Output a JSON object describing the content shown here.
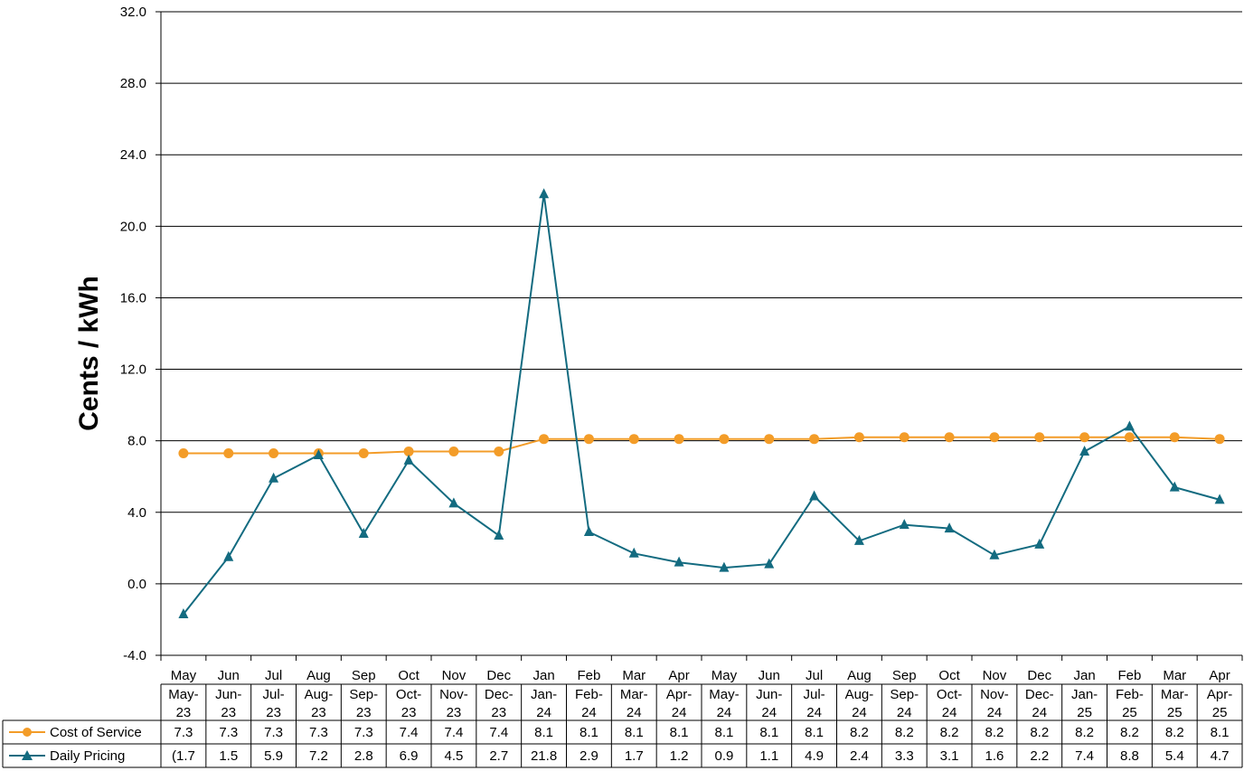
{
  "chart_data": {
    "type": "line",
    "ylabel": "Cents / kWh",
    "ylim": [
      -4.0,
      32.0
    ],
    "yticks": [
      "32.0",
      "28.0",
      "24.0",
      "20.0",
      "16.0",
      "12.0",
      "8.0",
      "4.0",
      "0.0",
      "-4.0"
    ],
    "grid": true,
    "legend": "data-table",
    "categories": [
      "May",
      "Jun",
      "Jul",
      "Aug",
      "Sep",
      "Oct",
      "Nov",
      "Dec",
      "Jan",
      "Feb",
      "Mar",
      "Apr",
      "May",
      "Jun",
      "Jul",
      "Aug",
      "Sep",
      "Oct",
      "Nov",
      "Dec",
      "Jan",
      "Feb",
      "Mar",
      "Apr"
    ],
    "period_labels": [
      [
        "May-",
        "23"
      ],
      [
        "Jun-",
        "23"
      ],
      [
        "Jul-",
        "23"
      ],
      [
        "Aug-",
        "23"
      ],
      [
        "Sep-",
        "23"
      ],
      [
        "Oct-",
        "23"
      ],
      [
        "Nov-",
        "23"
      ],
      [
        "Dec-",
        "23"
      ],
      [
        "Jan-",
        "24"
      ],
      [
        "Feb-",
        "24"
      ],
      [
        "Mar-",
        "24"
      ],
      [
        "Apr-",
        "24"
      ],
      [
        "May-",
        "24"
      ],
      [
        "Jun-",
        "24"
      ],
      [
        "Jul-",
        "24"
      ],
      [
        "Aug-",
        "24"
      ],
      [
        "Sep-",
        "24"
      ],
      [
        "Oct-",
        "24"
      ],
      [
        "Nov-",
        "24"
      ],
      [
        "Dec-",
        "24"
      ],
      [
        "Jan-",
        "25"
      ],
      [
        "Feb-",
        "25"
      ],
      [
        "Mar-",
        "25"
      ],
      [
        "Apr-",
        "25"
      ]
    ],
    "series": [
      {
        "name": "Cost of Service",
        "color": "#F39C28",
        "marker": "circle",
        "values": [
          7.3,
          7.3,
          7.3,
          7.3,
          7.3,
          7.4,
          7.4,
          7.4,
          8.1,
          8.1,
          8.1,
          8.1,
          8.1,
          8.1,
          8.1,
          8.2,
          8.2,
          8.2,
          8.2,
          8.2,
          8.2,
          8.2,
          8.2,
          8.1
        ],
        "labels": [
          "7.3",
          "7.3",
          "7.3",
          "7.3",
          "7.3",
          "7.4",
          "7.4",
          "7.4",
          "8.1",
          "8.1",
          "8.1",
          "8.1",
          "8.1",
          "8.1",
          "8.1",
          "8.2",
          "8.2",
          "8.2",
          "8.2",
          "8.2",
          "8.2",
          "8.2",
          "8.2",
          "8.1"
        ]
      },
      {
        "name": "Daily Pricing",
        "color": "#136B80",
        "marker": "triangle",
        "values": [
          -1.7,
          1.5,
          5.9,
          7.2,
          2.8,
          6.9,
          4.5,
          2.7,
          21.8,
          2.9,
          1.7,
          1.2,
          0.9,
          1.1,
          4.9,
          2.4,
          3.3,
          3.1,
          1.6,
          2.2,
          7.4,
          8.8,
          5.4,
          4.7
        ],
        "labels": [
          "(1.7",
          "1.5",
          "5.9",
          "7.2",
          "2.8",
          "6.9",
          "4.5",
          "2.7",
          "21.8",
          "2.9",
          "1.7",
          "1.2",
          "0.9",
          "1.1",
          "4.9",
          "2.4",
          "3.3",
          "3.1",
          "1.6",
          "2.2",
          "7.4",
          "8.8",
          "5.4",
          "4.7"
        ]
      }
    ]
  }
}
